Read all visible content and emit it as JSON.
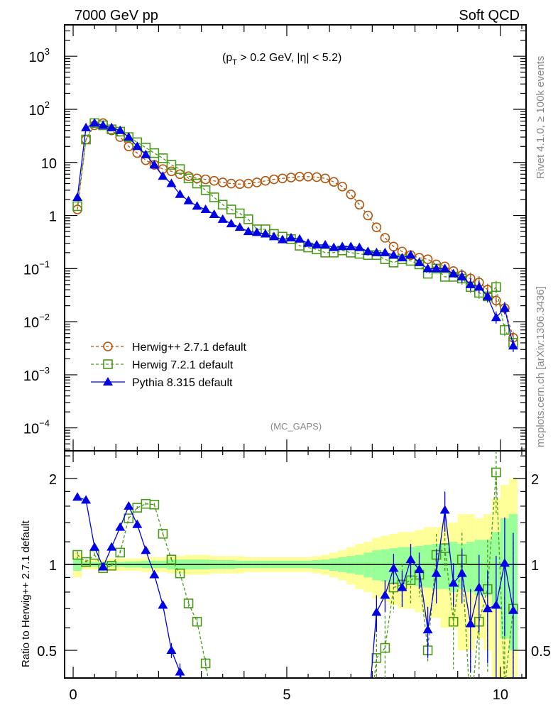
{
  "chart_data": {
    "type": "line",
    "title_left": "7000 GeV pp",
    "title_right": "Soft QCD",
    "cuts_label": "(p_T > 0.2 GeV, |η| < 5.2)",
    "cuts_parts": {
      "open": "(p",
      "sub": "T",
      "rest": " > 0.2 GeV, |η| < 5.2)"
    },
    "analysis_label": "(MC_GAPS)",
    "side_label_top": "Rivet 4.1.0, ≥ 100k events",
    "side_label_bottom": "mcplots.cern.ch [arXiv:1306.3436]",
    "ratio_ylabel": "Ratio to Herwig++ 2.7.1 default",
    "xlim": [
      -0.2,
      10.6
    ],
    "ylim_log": [
      3.7e-05,
      3900
    ],
    "ratio_ylim": [
      0.4,
      2.5
    ],
    "x_ticks": [
      {
        "v": 0,
        "label": "0"
      },
      {
        "v": 5,
        "label": "5"
      },
      {
        "v": 10,
        "label": "10"
      }
    ],
    "y_ticks": [
      {
        "exp": 3,
        "base": "10",
        "sup": "3"
      },
      {
        "exp": 2,
        "base": "10",
        "sup": "2"
      },
      {
        "exp": 1,
        "base": "10",
        "sup": ""
      },
      {
        "exp": 0,
        "base": "1",
        "sup": ""
      },
      {
        "exp": -1,
        "base": "10",
        "sup": "−1"
      },
      {
        "exp": -2,
        "base": "10",
        "sup": "−2"
      },
      {
        "exp": -3,
        "base": "10",
        "sup": "−3"
      },
      {
        "exp": -4,
        "base": "10",
        "sup": "−4"
      }
    ],
    "ratio_ticks": [
      {
        "v": 0.5,
        "label": "0.5"
      },
      {
        "v": 1,
        "label": "1"
      },
      {
        "v": 2,
        "label": "2"
      }
    ],
    "x": [
      0.1,
      0.3,
      0.5,
      0.7,
      0.9,
      1.1,
      1.3,
      1.5,
      1.7,
      1.9,
      2.1,
      2.3,
      2.5,
      2.7,
      2.9,
      3.1,
      3.3,
      3.5,
      3.7,
      3.9,
      4.1,
      4.3,
      4.5,
      4.7,
      4.9,
      5.1,
      5.3,
      5.5,
      5.7,
      5.9,
      6.1,
      6.3,
      6.5,
      6.7,
      6.9,
      7.1,
      7.3,
      7.5,
      7.7,
      7.9,
      8.1,
      8.3,
      8.5,
      8.7,
      8.9,
      9.1,
      9.3,
      9.5,
      9.7,
      9.9,
      10.1,
      10.3
    ],
    "series": [
      {
        "name": "Herwig++ 2.7.1 default",
        "color": "#b0560f",
        "marker": "circle",
        "dash": true,
        "values": [
          1.3,
          27,
          50,
          55,
          40,
          30,
          20,
          15,
          11,
          9,
          7.5,
          6.8,
          6,
          5.5,
          5,
          4.8,
          4.5,
          4.2,
          4.0,
          3.9,
          4.0,
          4.2,
          4.5,
          4.8,
          5.0,
          5.2,
          5.4,
          5.4,
          5.3,
          5.0,
          4.3,
          3.5,
          2.5,
          1.6,
          1.0,
          0.6,
          0.38,
          0.26,
          0.21,
          0.18,
          0.16,
          0.15,
          0.12,
          0.11,
          0.09,
          0.075,
          0.065,
          0.055,
          0.04,
          0.025,
          0.018,
          0.005
        ],
        "ratio": null,
        "ratio_err": null
      },
      {
        "name": "Herwig 7.2.1 default",
        "color": "#4a9a1a",
        "marker": "square",
        "dash": true,
        "values": [
          1.5,
          27,
          55,
          50,
          42,
          38,
          30,
          24,
          19,
          15,
          12,
          9,
          7.5,
          5,
          4,
          3,
          2.2,
          1.6,
          1.3,
          1.1,
          0.85,
          0.55,
          0.55,
          0.45,
          0.4,
          0.36,
          0.27,
          0.25,
          0.23,
          0.2,
          0.2,
          0.22,
          0.2,
          0.19,
          0.18,
          0.18,
          0.15,
          0.13,
          0.15,
          0.14,
          0.12,
          0.08,
          0.1,
          0.07,
          0.07,
          0.065,
          0.045,
          0.035,
          0.03,
          0.045,
          0.007,
          0.004
        ],
        "ratio": [
          1.08,
          1.02,
          1.08,
          0.97,
          0.99,
          1.1,
          1.45,
          1.58,
          1.63,
          1.62,
          1.28,
          1.04,
          0.93,
          0.73,
          0.63,
          0.45,
          0.3,
          0.25,
          0.25,
          0.25,
          0.25,
          0.25,
          0.25,
          0.25,
          0.25,
          0.25,
          0.25,
          0.25,
          0.25,
          0.25,
          0.25,
          0.25,
          0.25,
          0.25,
          0.25,
          0.47,
          0.51,
          0.83,
          0.85,
          0.88,
          0.92,
          0.5,
          1.08,
          1.14,
          0.63,
          1.04,
          0.3,
          0.63,
          0.82,
          2.1,
          0.37,
          0.7
        ],
        "ratio_err": [
          0.03,
          0.02,
          0.02,
          0.02,
          0.02,
          0.02,
          0.02,
          0.02,
          0.02,
          0.02,
          0.02,
          0.02,
          0.02,
          0.02,
          0.02,
          0.02,
          0,
          0,
          0,
          0,
          0,
          0,
          0,
          0,
          0,
          0,
          0,
          0,
          0,
          0,
          0,
          0,
          0,
          0,
          0,
          0.1,
          0.15,
          0.15,
          0.15,
          0.15,
          0.15,
          0.05,
          0.2,
          0.2,
          0.2,
          0.25,
          0.2,
          0.2,
          0.4,
          0.6,
          0.4,
          0.5
        ]
      },
      {
        "name": "Pythia 8.315 default",
        "color": "#0000e6",
        "marker": "triangle",
        "dash": false,
        "values": [
          2.2,
          45,
          55,
          50,
          45,
          40,
          30,
          20,
          14,
          9,
          5.5,
          4,
          2.5,
          1.9,
          1.5,
          1.3,
          1.05,
          0.85,
          0.7,
          0.6,
          0.5,
          0.48,
          0.45,
          0.4,
          0.35,
          0.38,
          0.36,
          0.3,
          0.28,
          0.28,
          0.25,
          0.26,
          0.26,
          0.25,
          0.21,
          0.2,
          0.2,
          0.18,
          0.16,
          0.18,
          0.13,
          0.1,
          0.1,
          0.1,
          0.08,
          0.07,
          0.05,
          0.045,
          0.03,
          0.012,
          0.018,
          0.0035
        ],
        "ratio": [
          1.72,
          1.68,
          1.15,
          0.98,
          1.15,
          1.35,
          1.6,
          1.38,
          1.12,
          0.92,
          0.72,
          0.5,
          0.42,
          0.3,
          0.25,
          0.25,
          0.25,
          0.25,
          0.25,
          0.25,
          0.25,
          0.25,
          0.25,
          0.25,
          0.25,
          0.25,
          0.25,
          0.25,
          0.25,
          0.25,
          0.25,
          0.25,
          0.25,
          0.25,
          0.3,
          0.68,
          0.78,
          0.97,
          0.83,
          1.04,
          0.96,
          0.59,
          0.93,
          1.55,
          0.86,
          0.93,
          0.62,
          0.83,
          0.7,
          0.72,
          1.01,
          0.69
        ],
        "ratio_err": [
          0.04,
          0.02,
          0.02,
          0.02,
          0.02,
          0.02,
          0.02,
          0.02,
          0.02,
          0.02,
          0.02,
          0.03,
          0.03,
          0,
          0,
          0,
          0,
          0,
          0,
          0,
          0,
          0,
          0,
          0,
          0,
          0,
          0,
          0,
          0,
          0,
          0,
          0,
          0,
          0,
          0,
          0.1,
          0.1,
          0.12,
          0.12,
          0.14,
          0.14,
          0.12,
          0.2,
          0.25,
          0.15,
          0.2,
          0.2,
          0.25,
          0.25,
          0.35,
          0.45,
          0.6
        ]
      }
    ],
    "ratio_band_inner": [
      0.05,
      0.02,
      0.02,
      0.02,
      0.02,
      0.02,
      0.025,
      0.025,
      0.03,
      0.03,
      0.03,
      0.04,
      0.04,
      0.04,
      0.04,
      0.04,
      0.035,
      0.035,
      0.035,
      0.03,
      0.03,
      0.03,
      0.03,
      0.03,
      0.03,
      0.03,
      0.03,
      0.03,
      0.035,
      0.04,
      0.05,
      0.06,
      0.07,
      0.08,
      0.1,
      0.12,
      0.13,
      0.14,
      0.15,
      0.15,
      0.16,
      0.17,
      0.18,
      0.18,
      0.2,
      0.18,
      0.2,
      0.22,
      0.22,
      0.3,
      0.45,
      0.5
    ],
    "ratio_band_outer": [
      0.1,
      0.04,
      0.04,
      0.04,
      0.05,
      0.05,
      0.05,
      0.05,
      0.06,
      0.06,
      0.06,
      0.07,
      0.07,
      0.08,
      0.08,
      0.08,
      0.07,
      0.07,
      0.07,
      0.07,
      0.06,
      0.06,
      0.06,
      0.06,
      0.06,
      0.06,
      0.06,
      0.06,
      0.07,
      0.08,
      0.1,
      0.12,
      0.15,
      0.18,
      0.2,
      0.24,
      0.26,
      0.28,
      0.3,
      0.3,
      0.32,
      0.35,
      0.35,
      0.4,
      0.4,
      0.5,
      0.5,
      0.45,
      0.5,
      0.7,
      0.9,
      1.0
    ],
    "band_colors": {
      "inner": "#99ff99",
      "outer": "#ffff99"
    },
    "legend_position": "bottom-left"
  }
}
